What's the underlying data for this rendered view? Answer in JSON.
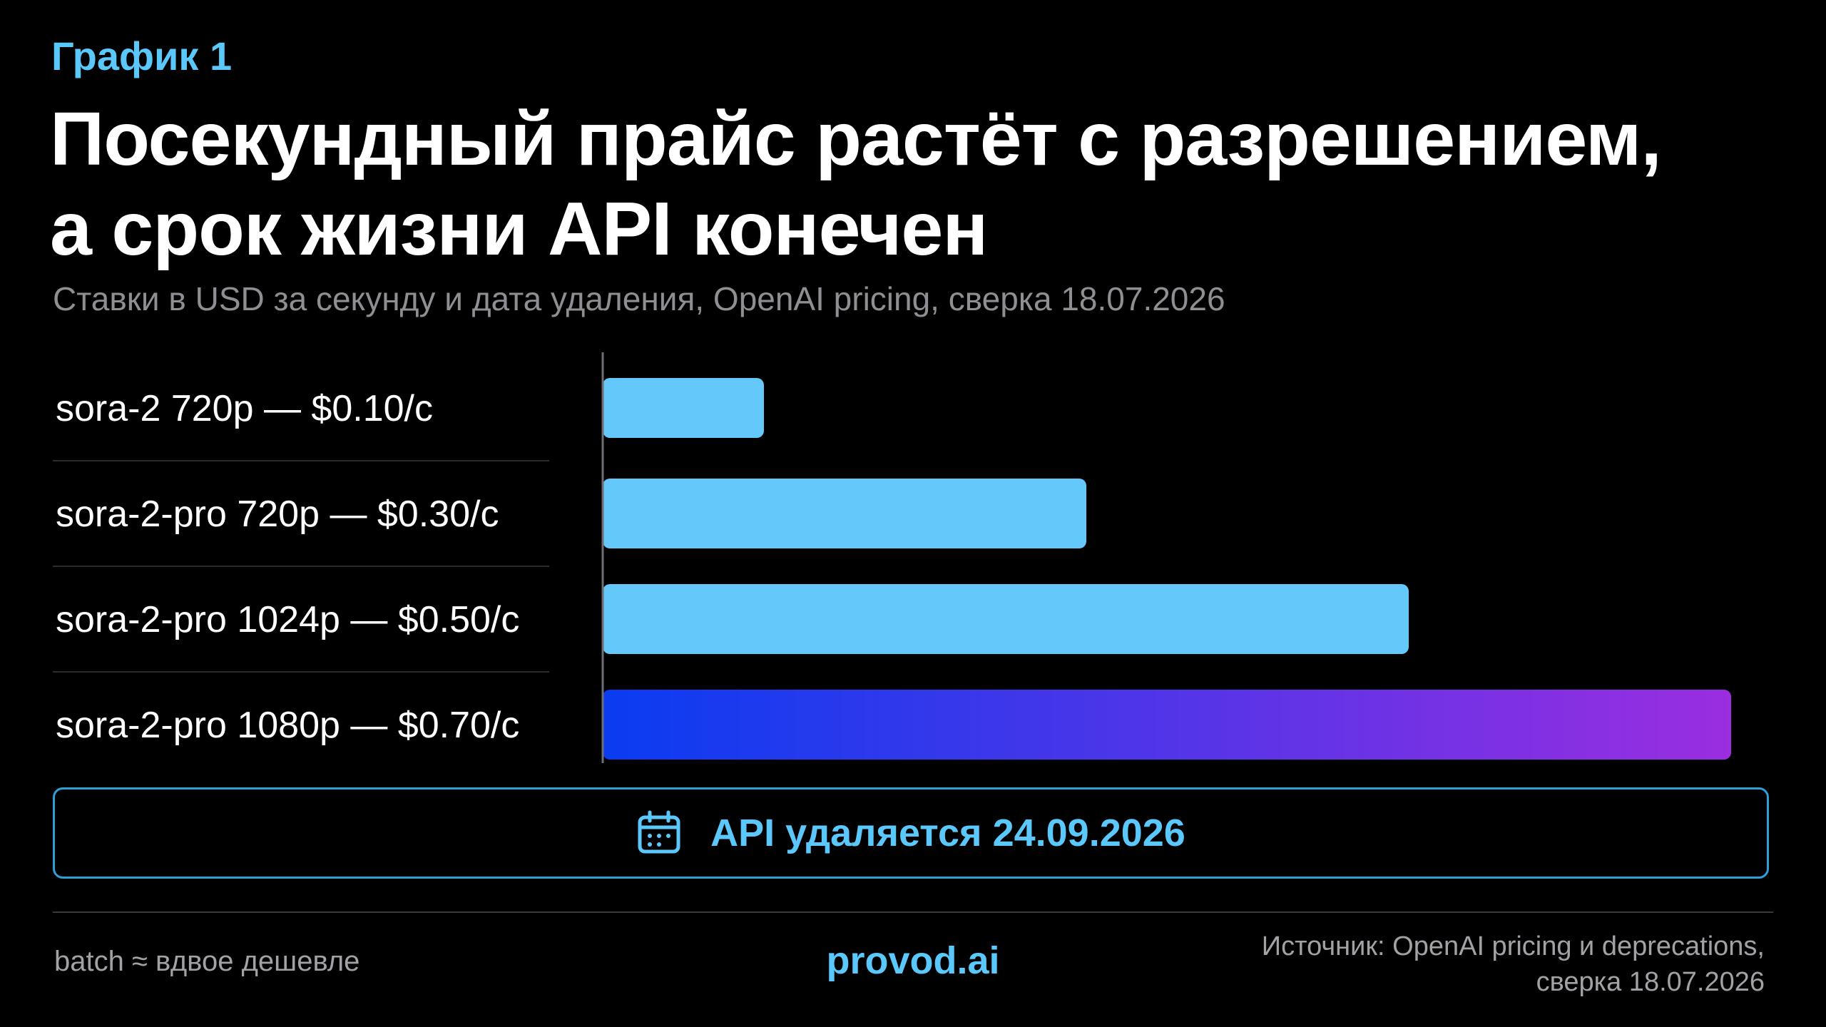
{
  "header": {
    "eyebrow": "График 1",
    "title_line1": "Посекундный прайс растёт с разрешением,",
    "title_line2": "а срок жизни API конечен",
    "subtitle": "Ставки в USD за секунду и дата удаления, OpenAI pricing, сверка 18.07.2026"
  },
  "chart_data": {
    "type": "bar",
    "orientation": "horizontal",
    "categories": [
      "sora-2 720p — $0.10/с",
      "sora-2-pro 720p — $0.30/с",
      "sora-2-pro 1024p — $0.50/с",
      "sora-2-pro 1080p — $0.70/с"
    ],
    "values": [
      0.1,
      0.3,
      0.5,
      0.7
    ],
    "unit": "USD/с",
    "xlim": [
      0,
      0.7
    ],
    "grid": false,
    "legend": "none",
    "colors": {
      "bar": "#64c8fa",
      "highlight_start": "#0a3cf0",
      "highlight_end": "#9a2ee0",
      "axis": "#6e6e73",
      "divider": "#2c2c2e",
      "label": "#ffffff"
    },
    "highlight_index": 3
  },
  "deadline": {
    "icon": "calendar-icon",
    "text": "API удаляется 24.09.2026",
    "color": "#5ac8fa"
  },
  "footer": {
    "note": "batch ≈ вдвое дешевле",
    "brand": "provod.ai",
    "source_line1": "Источник: OpenAI pricing и deprecations,",
    "source_line2": "сверка 18.07.2026"
  }
}
